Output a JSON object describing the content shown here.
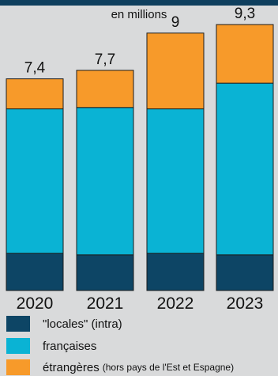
{
  "subtitle": "en millions",
  "colors": {
    "background": "#d9dadb",
    "header_band": "#0f3f5e"
  },
  "legend": [
    {
      "label": "\"locales\" (intra)",
      "note": "",
      "color": "#0d4565"
    },
    {
      "label": "françaises",
      "note": "",
      "color": "#0ab3d4"
    },
    {
      "label": "étrangères",
      "note": "(hors pays de l'Est et Espagne)",
      "color": "#f79a2a"
    }
  ],
  "chart_data": {
    "type": "bar",
    "stacked": true,
    "categories": [
      "2020",
      "2021",
      "2022",
      "2023"
    ],
    "totals": [
      7.4,
      7.7,
      9,
      9.3
    ],
    "total_labels": [
      "7,4",
      "7,7",
      "9",
      "9,3"
    ],
    "series": [
      {
        "name": "\"locales\" (intra)",
        "color": "#0d4565",
        "values": [
          1.3,
          1.25,
          1.3,
          1.25
        ]
      },
      {
        "name": "françaises",
        "color": "#0ab3d4",
        "values": [
          5.05,
          5.15,
          5.05,
          6.0
        ]
      },
      {
        "name": "étrangères",
        "color": "#f79a2a",
        "values": [
          1.05,
          1.3,
          2.65,
          2.05
        ]
      }
    ],
    "ylim": [
      0,
      10
    ],
    "grid": false,
    "legend_position": "bottom"
  }
}
